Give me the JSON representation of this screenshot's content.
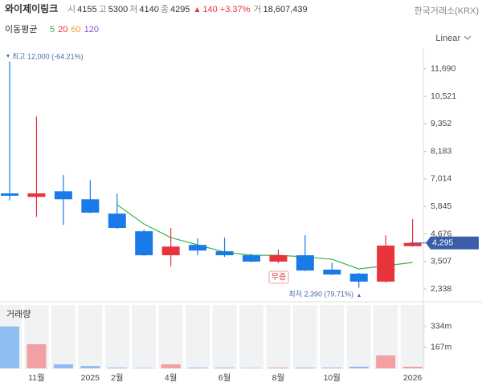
{
  "header": {
    "name": "와이제이링크",
    "items": [
      {
        "label": "시",
        "value": "4155"
      },
      {
        "label": "고",
        "value": "5300"
      },
      {
        "label": "저",
        "value": "4140"
      },
      {
        "label": "종",
        "value": "4295"
      }
    ],
    "change": "140",
    "change_pct": "+3.37%",
    "volume_label": "거",
    "volume": "18,607,439",
    "exchange": "한국거래소(KRX)"
  },
  "ma_legend": {
    "label": "이동평균",
    "periods": [
      {
        "text": "5",
        "color": "#3cb44b"
      },
      {
        "text": "20",
        "color": "#e8333a"
      },
      {
        "text": "60",
        "color": "#f0a030"
      },
      {
        "text": "120",
        "color": "#8a4fd8"
      }
    ]
  },
  "scale_button": "Linear",
  "chart_data": {
    "type": "candlestick",
    "categories": [
      null,
      "11월",
      null,
      "2025",
      "2월",
      null,
      "4월",
      null,
      "6월",
      null,
      "8월",
      null,
      "10월",
      null,
      null,
      "2026"
    ],
    "open": [
      6400,
      6250,
      6490,
      6150,
      5540,
      4790,
      3770,
      4210,
      3940,
      3770,
      3500,
      3770,
      3160,
      2990,
      2650,
      4155
    ],
    "high": [
      12000,
      9670,
      7180,
      6970,
      6390,
      4860,
      4930,
      4490,
      4520,
      3840,
      4010,
      4620,
      3460,
      3020,
      4620,
      5300
    ],
    "low": [
      6100,
      5400,
      5060,
      5560,
      4900,
      3750,
      3290,
      3770,
      3700,
      3470,
      3430,
      3100,
      2930,
      2390,
      2610,
      4140
    ],
    "close": [
      6300,
      6400,
      6150,
      5580,
      4930,
      3770,
      4140,
      3970,
      3770,
      3500,
      3770,
      3120,
      2950,
      2650,
      4180,
      4295
    ],
    "up_color": "#e8333a",
    "down_color": "#1a7be8",
    "ylim": [
      2000,
      12400
    ],
    "yticks": [
      {
        "value": 2338,
        "label": "2,338"
      },
      {
        "value": 3507,
        "label": "3,507"
      },
      {
        "value": 4676,
        "label": "4,676"
      },
      {
        "value": 5845,
        "label": "5,845"
      },
      {
        "value": 7014,
        "label": "7,014"
      },
      {
        "value": 8183,
        "label": "8,183"
      },
      {
        "value": 9352,
        "label": "9,352"
      },
      {
        "value": 10521,
        "label": "10,521"
      },
      {
        "value": 11690,
        "label": "11,690"
      }
    ],
    "last_price": {
      "value": 4295,
      "label": "4,295"
    },
    "annotations": [
      {
        "text": "최고 12,000 (-64.21%)"
      },
      {
        "text": "최저 2,390 (79.71%)"
      },
      {
        "text": "무증"
      }
    ],
    "moving_average": {
      "color": "#3cb44b",
      "values": [
        null,
        null,
        null,
        null,
        5916,
        5098,
        4520,
        4212,
        3906,
        3770,
        3770,
        3700,
        3600,
        3190,
        3326,
        3463
      ]
    },
    "volume": {
      "title": "거래량",
      "values": [
        334000000,
        193000000,
        32000000,
        19000000,
        6000000,
        3000000,
        32000000,
        6000000,
        6000000,
        3000000,
        6000000,
        6000000,
        6000000,
        13000000,
        103000000,
        13000000
      ],
      "up_color": "#f2a0a2",
      "down_color": "#8dbdf3",
      "ylim": [
        0,
        500000000
      ],
      "yticks": [
        {
          "value": 167000000,
          "label": "167m"
        },
        {
          "value": 334000000,
          "label": "334m"
        }
      ]
    }
  }
}
